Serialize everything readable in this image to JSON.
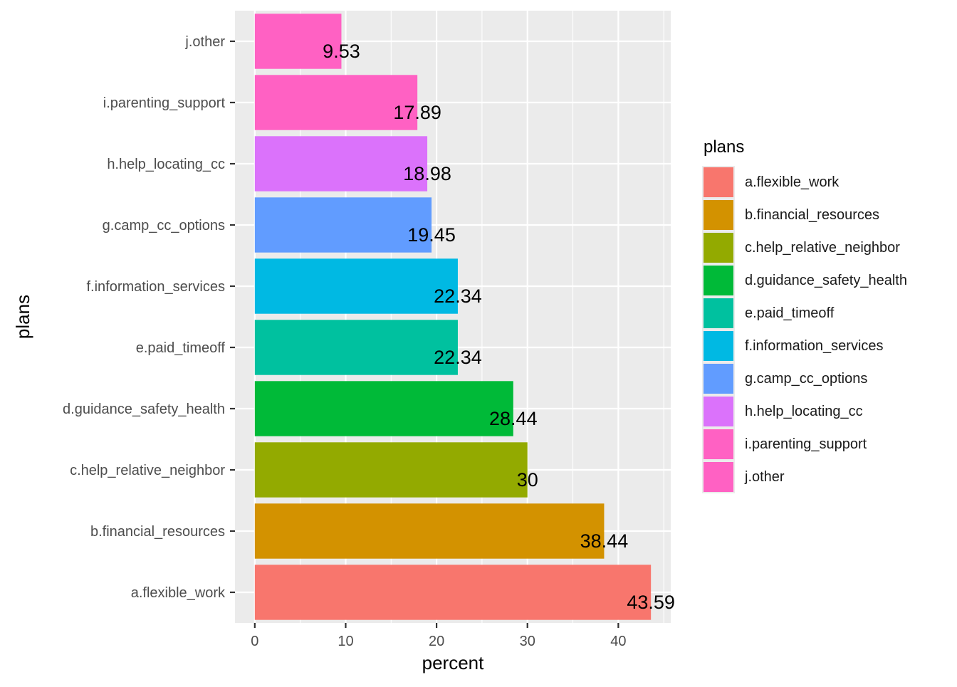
{
  "chart_data": {
    "type": "bar",
    "orientation": "horizontal",
    "categories": [
      "a.flexible_work",
      "b.financial_resources",
      "c.help_relative_neighbor",
      "d.guidance_safety_health",
      "e.paid_timeoff",
      "f.information_services",
      "g.camp_cc_options",
      "h.help_locating_cc",
      "i.parenting_support",
      "j.other"
    ],
    "values": [
      43.59,
      38.44,
      30,
      28.44,
      22.34,
      22.34,
      19.45,
      18.98,
      17.89,
      9.53
    ],
    "data_labels": [
      "43.59",
      "38.44",
      "30",
      "28.44",
      "22.34",
      "22.34",
      "19.45",
      "18.98",
      "17.89",
      "9.53"
    ],
    "colors": [
      "#F8766D",
      "#D39200",
      "#93AA00",
      "#00BA38",
      "#00C19F",
      "#00B9E3",
      "#619CFF",
      "#DB72FB",
      "#FF61C3",
      "#FF61C3"
    ],
    "xlabel": "percent",
    "ylabel": "plans",
    "xlim": [
      -2.18,
      45.77
    ],
    "xticks": [
      0,
      10,
      20,
      30,
      40
    ],
    "xtick_labels": [
      "0",
      "10",
      "20",
      "30",
      "40"
    ],
    "grid": true,
    "legend": {
      "title": "plans",
      "position": "right",
      "entries": [
        "a.flexible_work",
        "b.financial_resources",
        "c.help_relative_neighbor",
        "d.guidance_safety_health",
        "e.paid_timeoff",
        "f.information_services",
        "g.camp_cc_options",
        "h.help_locating_cc",
        "i.parenting_support",
        "j.other"
      ]
    }
  },
  "colors": {
    "panel_background": "#EBEBEB",
    "grid_line": "#FFFFFF",
    "axis_text": "#4D4D4D",
    "title_text": "#000000"
  }
}
